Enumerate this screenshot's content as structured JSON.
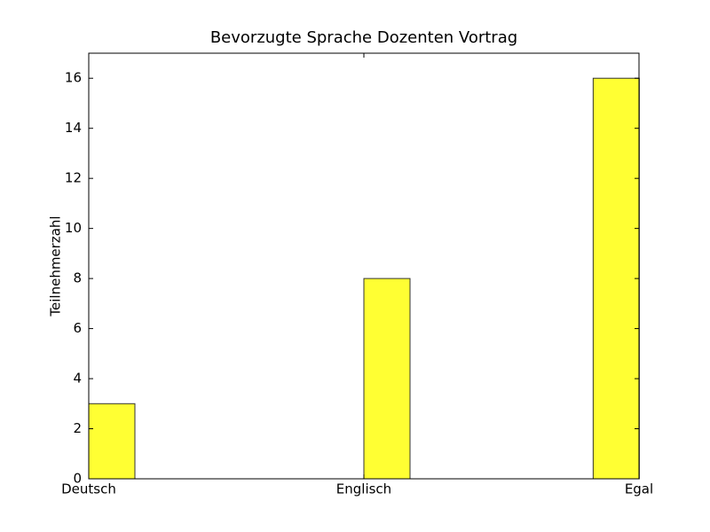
{
  "chart_data": {
    "type": "bar",
    "title": "Bevorzugte Sprache Dozenten Vortrag",
    "y_label": "Teilnehmerzahl",
    "categories": [
      "Deutsch",
      "Englisch",
      "Egal"
    ],
    "values": [
      3,
      8,
      16
    ],
    "color": "#ffff33",
    "ylim": [
      0,
      17
    ],
    "yticks": [
      0,
      2,
      4,
      6,
      8,
      10,
      12,
      14,
      16
    ]
  }
}
